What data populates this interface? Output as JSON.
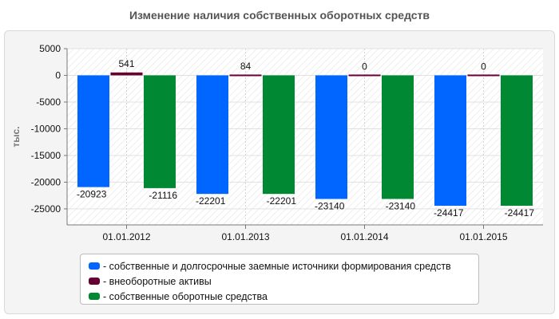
{
  "chart_data": {
    "type": "bar",
    "title": "Изменение наличия собственных оборотных средств",
    "ylabel": "тыс.",
    "xlabel": "",
    "ylim": [
      -28000,
      5000
    ],
    "yticks": [
      5000,
      0,
      -5000,
      -10000,
      -15000,
      -20000,
      -25000
    ],
    "grid": true,
    "legend_position": "bottom",
    "categories": [
      "01.01.2012",
      "01.01.2013",
      "01.01.2014",
      "01.01.2015"
    ],
    "series": [
      {
        "name": "- собственные и долгосрочные заемные источники формирования средств",
        "color": "#0066ff",
        "values": [
          -20923,
          -22201,
          -23140,
          -24417
        ]
      },
      {
        "name": "- внеоборотные активы",
        "color": "#660033",
        "values": [
          541,
          84,
          0,
          0
        ]
      },
      {
        "name": "- собственные оборотные средства",
        "color": "#008833",
        "values": [
          -21116,
          -22201,
          -23140,
          -24417
        ]
      }
    ]
  }
}
